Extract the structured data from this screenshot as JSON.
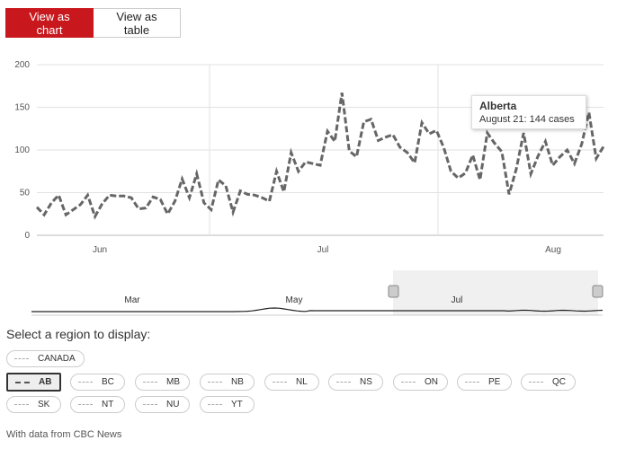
{
  "toggle": {
    "chart_label": "View as chart",
    "table_label": "View as table"
  },
  "chart_data": {
    "type": "line",
    "series": [
      {
        "name": "Alberta",
        "values": [
          33,
          24,
          38,
          47,
          24,
          30,
          36,
          47,
          22,
          37,
          47,
          46,
          46,
          44,
          31,
          32,
          45,
          42,
          25,
          40,
          66,
          44,
          72,
          38,
          30,
          65,
          58,
          27,
          52,
          48,
          47,
          44,
          40,
          75,
          51,
          97,
          75,
          86,
          84,
          82,
          122,
          110,
          167,
          99,
          92,
          133,
          136,
          111,
          115,
          118,
          103,
          97,
          85,
          132,
          119,
          123,
          103,
          75,
          67,
          73,
          94,
          65,
          120,
          108,
          98,
          48,
          78,
          120,
          72,
          93,
          110,
          82,
          92,
          100,
          84,
          107,
          144,
          90,
          104
        ],
        "color": "#666666"
      }
    ],
    "ylim": [
      0,
      200
    ],
    "y_ticks": [
      "0",
      "50",
      "100",
      "150",
      "200"
    ],
    "x_ticks": [
      "Jun",
      "Jul",
      "Aug"
    ],
    "grid": true
  },
  "navigator": {
    "labels": [
      "Mar",
      "May",
      "Jul"
    ]
  },
  "tooltip": {
    "title": "Alberta",
    "text": "August 21: 144 cases"
  },
  "region_heading": "Select a region to display:",
  "regions": [
    {
      "label": "CANADA"
    },
    {
      "label": "AB"
    },
    {
      "label": "BC"
    },
    {
      "label": "MB"
    },
    {
      "label": "NB"
    },
    {
      "label": "NL"
    },
    {
      "label": "NS"
    },
    {
      "label": "ON"
    },
    {
      "label": "PE"
    },
    {
      "label": "QC"
    },
    {
      "label": "SK"
    },
    {
      "label": "NT"
    },
    {
      "label": "NU"
    },
    {
      "label": "YT"
    }
  ],
  "footer": "With data from CBC News"
}
